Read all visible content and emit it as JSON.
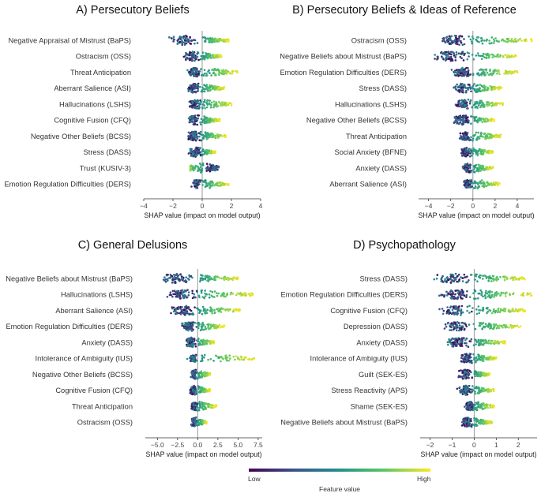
{
  "chart_data": [
    {
      "type": "scatter",
      "subtype": "shap-beeswarm",
      "title": "A) Persecutory Beliefs",
      "xlabel": "SHAP value (impact on model output)",
      "xlim": [
        -4,
        4
      ],
      "ticks": [
        -4,
        -2,
        0,
        2,
        4
      ],
      "tick_labels": [
        "−4",
        "−2",
        "0",
        "2",
        "4"
      ],
      "features": [
        {
          "name": "Negative Appraisal of Mistrust (BaPS)",
          "min": -2.8,
          "max": 1.8,
          "high_effect": "positive"
        },
        {
          "name": "Ostracism (OSS)",
          "min": -1.5,
          "max": 1.3,
          "high_effect": "positive"
        },
        {
          "name": "Threat Anticipation",
          "min": -1.3,
          "max": 2.4,
          "high_effect": "positive"
        },
        {
          "name": "Aberrant Salience (ASI)",
          "min": -1.3,
          "max": 1.5,
          "high_effect": "positive"
        },
        {
          "name": "Hallucinations (LSHS)",
          "min": -1.1,
          "max": 2.0,
          "high_effect": "positive"
        },
        {
          "name": "Cognitive Fusion (CFQ)",
          "min": -1.2,
          "max": 1.2,
          "high_effect": "positive"
        },
        {
          "name": "Negative Other Beliefs (BCSS)",
          "min": -1.4,
          "max": 1.6,
          "high_effect": "positive"
        },
        {
          "name": "Stress (DASS)",
          "min": -1.1,
          "max": 0.9,
          "high_effect": "positive"
        },
        {
          "name": "Trust (KUSIV-3)",
          "min": -0.8,
          "max": 1.6,
          "high_effect": "negative"
        },
        {
          "name": "Emotion Regulation Difficulties (DERS)",
          "min": -0.9,
          "max": 1.8,
          "high_effect": "positive"
        }
      ]
    },
    {
      "type": "scatter",
      "subtype": "shap-beeswarm",
      "title": "B) Persecutory Beliefs & Ideas of Reference",
      "xlabel": "SHAP value (impact on model output)",
      "xlim": [
        -4.9,
        5.5
      ],
      "ticks": [
        -4,
        -2,
        0,
        2,
        4
      ],
      "tick_labels": [
        "−4",
        "−2",
        "0",
        "2",
        "4"
      ],
      "features": [
        {
          "name": "Ostracism (OSS)",
          "min": -4.1,
          "max": 5.3,
          "high_effect": "positive"
        },
        {
          "name": "Negative Beliefs about Mistrust (BaPS)",
          "min": -4.5,
          "max": 3.9,
          "high_effect": "positive"
        },
        {
          "name": "Emotion Regulation Difficulties (DERS)",
          "min": -2.4,
          "max": 4.0,
          "high_effect": "positive"
        },
        {
          "name": "Stress (DASS)",
          "min": -2.1,
          "max": 2.6,
          "high_effect": "positive"
        },
        {
          "name": "Hallucinations (LSHS)",
          "min": -1.9,
          "max": 2.7,
          "high_effect": "positive"
        },
        {
          "name": "Negative Other Beliefs (BCSS)",
          "min": -2.2,
          "max": 1.9,
          "high_effect": "positive"
        },
        {
          "name": "Threat Anticipation",
          "min": -1.5,
          "max": 2.5,
          "high_effect": "positive"
        },
        {
          "name": "Social Anxiety (BFNE)",
          "min": -1.5,
          "max": 1.8,
          "high_effect": "positive"
        },
        {
          "name": "Anxiety (DASS)",
          "min": -1.2,
          "max": 1.8,
          "high_effect": "positive"
        },
        {
          "name": "Aberrant Salience (ASI)",
          "min": -1.1,
          "max": 2.4,
          "high_effect": "positive"
        }
      ]
    },
    {
      "type": "scatter",
      "subtype": "shap-beeswarm",
      "title": "C) General Delusions",
      "xlabel": "SHAP value (impact on model output)",
      "xlim": [
        -6.5,
        8.0
      ],
      "ticks": [
        -5,
        -2.5,
        0,
        2.5,
        5,
        7.5
      ],
      "tick_labels": [
        "−5.0",
        "−2.5",
        "0.0",
        "2.5",
        "5.0",
        "7.5"
      ],
      "features": [
        {
          "name": "Negative Beliefs about Mistrust (BaPS)",
          "min": -5.8,
          "max": 5.0,
          "high_effect": "positive"
        },
        {
          "name": "Hallucinations (LSHS)",
          "min": -4.5,
          "max": 6.8,
          "high_effect": "positive"
        },
        {
          "name": "Aberrant Salience (ASI)",
          "min": -4.0,
          "max": 5.2,
          "high_effect": "positive"
        },
        {
          "name": "Emotion Regulation Difficulties (DERS)",
          "min": -2.4,
          "max": 3.3,
          "high_effect": "positive"
        },
        {
          "name": "Anxiety (DASS)",
          "min": -2.0,
          "max": 2.0,
          "high_effect": "positive"
        },
        {
          "name": "Intolerance of Ambiguity (IUS)",
          "min": -1.3,
          "max": 7.0,
          "high_effect": "positive"
        },
        {
          "name": "Negative Other Beliefs (BCSS)",
          "min": -1.0,
          "max": 1.5,
          "high_effect": "positive"
        },
        {
          "name": "Cognitive Fusion (CFQ)",
          "min": -1.3,
          "max": 1.5,
          "high_effect": "positive"
        },
        {
          "name": "Threat Anticipation",
          "min": -1.0,
          "max": 2.3,
          "high_effect": "positive"
        },
        {
          "name": "Ostracism (OSS)",
          "min": -1.0,
          "max": 1.1,
          "high_effect": "positive"
        }
      ]
    },
    {
      "type": "scatter",
      "subtype": "shap-beeswarm",
      "title": "D) Psychopathology",
      "xlabel": "SHAP value (impact on model output)",
      "xlim": [
        -2.45,
        2.85
      ],
      "ticks": [
        -2,
        -1,
        0,
        1,
        2
      ],
      "tick_labels": [
        "−2",
        "−1",
        "0",
        "1",
        "2"
      ],
      "features": [
        {
          "name": "Stress (DASS)",
          "min": -2.2,
          "max": 2.3,
          "high_effect": "positive"
        },
        {
          "name": "Emotion Regulation Difficulties (DERS)",
          "min": -1.9,
          "max": 2.6,
          "high_effect": "positive"
        },
        {
          "name": "Cognitive Fusion (CFQ)",
          "min": -2.0,
          "max": 2.3,
          "high_effect": "positive"
        },
        {
          "name": "Depression (DASS)",
          "min": -1.8,
          "max": 2.1,
          "high_effect": "positive"
        },
        {
          "name": "Anxiety (DASS)",
          "min": -1.6,
          "max": 1.4,
          "high_effect": "positive"
        },
        {
          "name": "Intolerance of Ambiguity (IUS)",
          "min": -0.8,
          "max": 1.0,
          "high_effect": "positive"
        },
        {
          "name": "Guilt (SEK-ES)",
          "min": -0.9,
          "max": 0.7,
          "high_effect": "positive"
        },
        {
          "name": "Stress Reactivity (APS)",
          "min": -0.9,
          "max": 0.9,
          "high_effect": "positive"
        },
        {
          "name": "Shame (SEK-ES)",
          "min": -0.5,
          "max": 0.9,
          "high_effect": "positive"
        },
        {
          "name": "Negative Beliefs about Mistrust (BaPS)",
          "min": -0.8,
          "max": 0.8,
          "high_effect": "positive"
        }
      ]
    }
  ],
  "colorbar": {
    "label": "Feature value",
    "low_label": "Low",
    "high_label": "High",
    "colors": [
      "#440154",
      "#3b528b",
      "#21918c",
      "#5ec962",
      "#fde725"
    ]
  }
}
